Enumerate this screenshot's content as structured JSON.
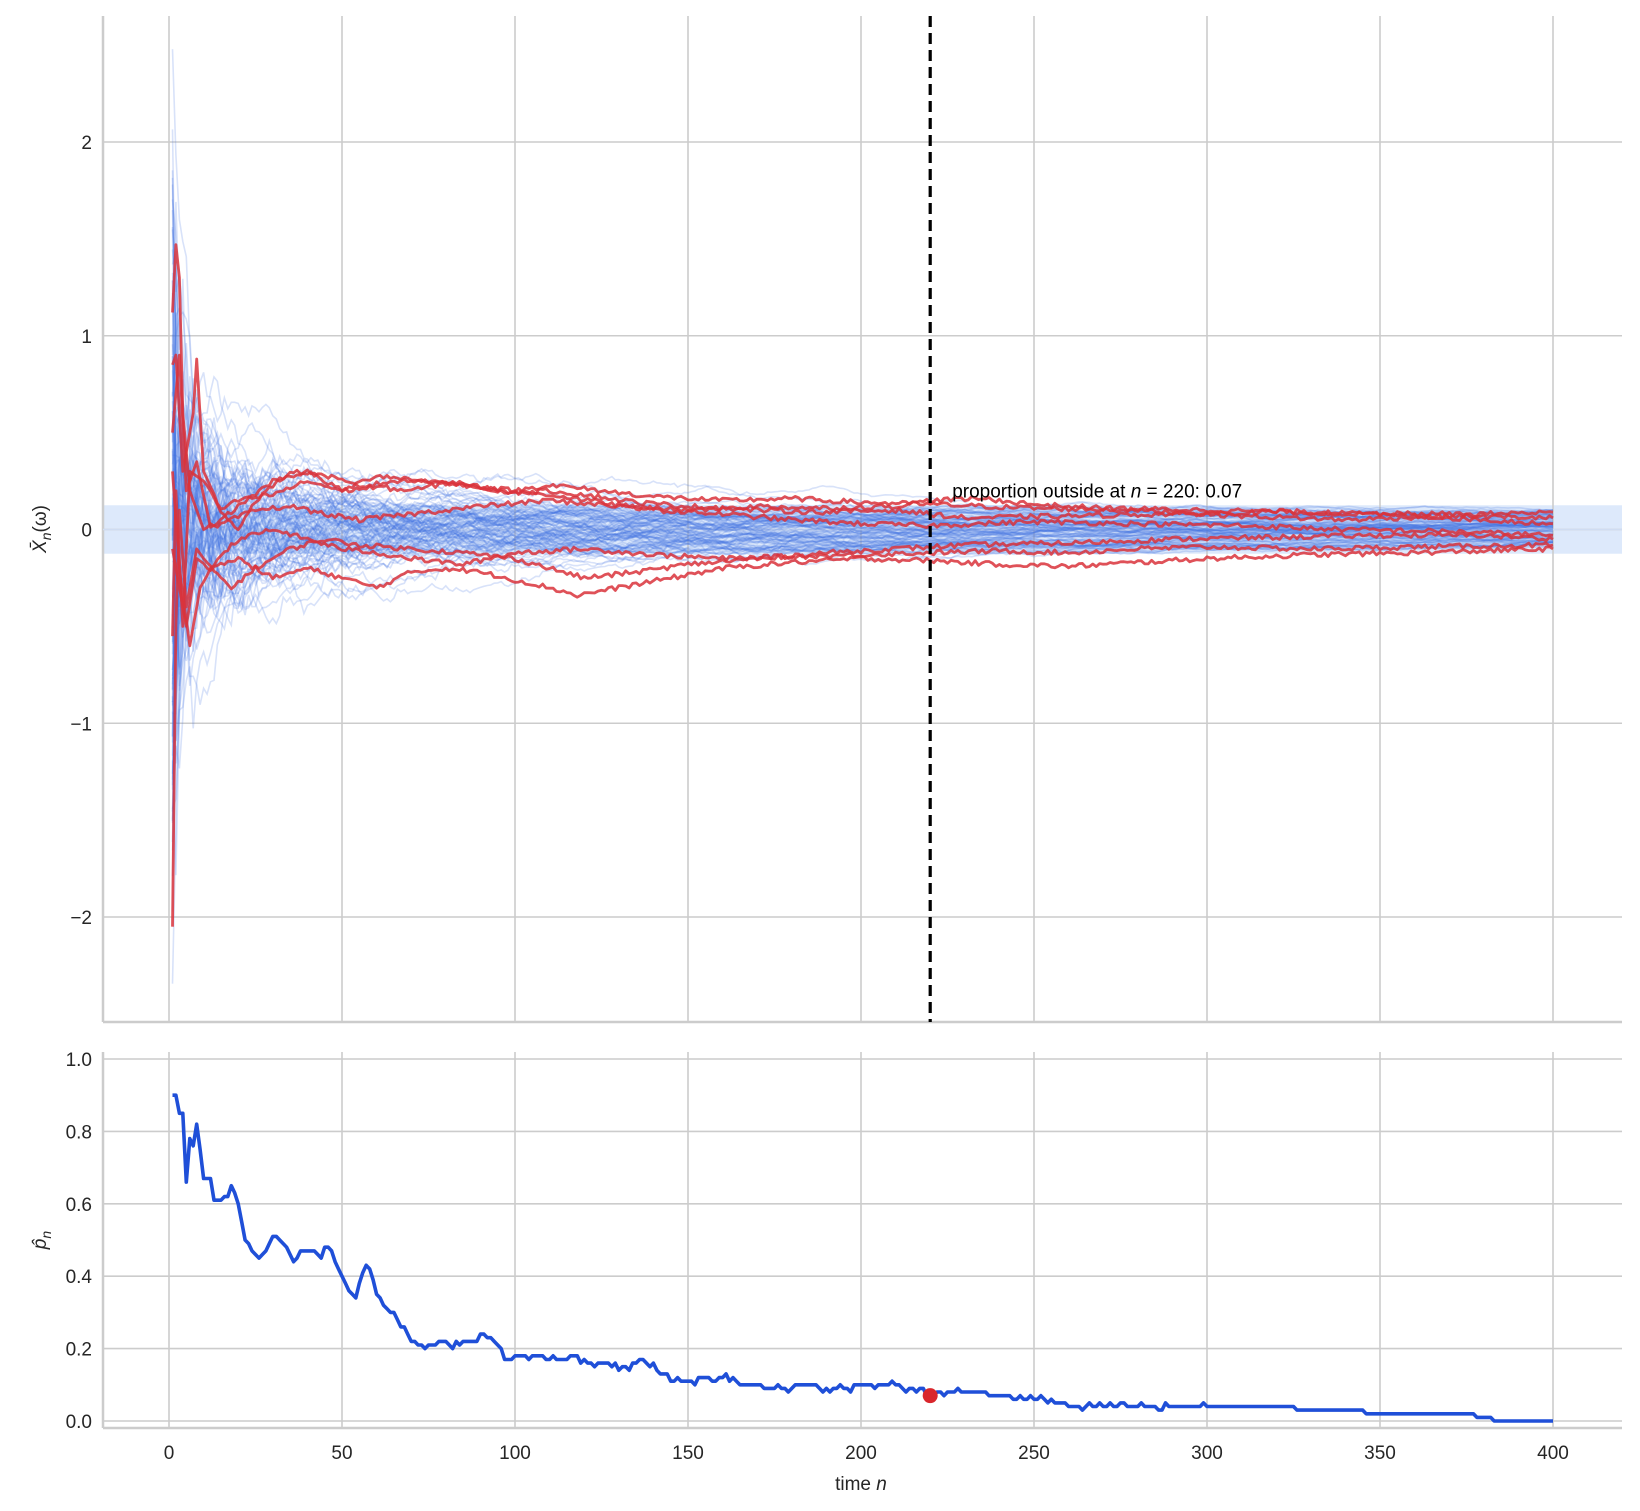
{
  "chart_data": [
    {
      "panel": "top",
      "type": "line",
      "title": "",
      "xlabel": "",
      "ylabel": "X̄_n(ω)",
      "ylabel_main": "X̄",
      "ylabel_sub": "n",
      "ylabel_tail": "(ω)",
      "xlim": [
        -18,
        420
      ],
      "ylim": [
        -2.55,
        2.5
      ],
      "xticks": [
        0,
        50,
        100,
        150,
        200,
        250,
        300,
        350,
        400
      ],
      "yticks": [
        -2,
        -1,
        0,
        1,
        2
      ],
      "ytick_labels": [
        "−2",
        "−1",
        "0",
        "1",
        "2"
      ],
      "grid": true,
      "n_max": 400,
      "epsilon_band": [
        -0.125,
        0.125
      ],
      "band_color": "#dde9fb",
      "n_paths_inside": 93,
      "n_paths_outside": 7,
      "inside_color": "#3b6fe0",
      "outside_color": "#d9333b",
      "vline_n": 220,
      "annotation": {
        "prefix": "proportion outside at ",
        "var": "n",
        "mid": " = 220: ",
        "value": "0.07"
      },
      "outside_paths": [
        {
          "points": [
            [
              1,
              1.12
            ],
            [
              2,
              1.47
            ],
            [
              3,
              1.3
            ],
            [
              4,
              0.6
            ],
            [
              6,
              0.2
            ],
            [
              10,
              0.0
            ],
            [
              15,
              0.05
            ],
            [
              20,
              0.12
            ],
            [
              30,
              0.25
            ],
            [
              40,
              0.3
            ],
            [
              50,
              0.2
            ],
            [
              60,
              0.28
            ],
            [
              75,
              0.25
            ],
            [
              90,
              0.22
            ],
            [
              100,
              0.2
            ],
            [
              110,
              0.23
            ],
            [
              125,
              0.2
            ],
            [
              140,
              0.17
            ],
            [
              160,
              0.15
            ],
            [
              180,
              0.16
            ],
            [
              200,
              0.14
            ],
            [
              220,
              0.13
            ],
            [
              250,
              0.11
            ],
            [
              280,
              0.1
            ],
            [
              310,
              0.07
            ],
            [
              340,
              0.05
            ],
            [
              370,
              0.07
            ],
            [
              400,
              0.06
            ]
          ]
        },
        {
          "points": [
            [
              1,
              0.85
            ],
            [
              2,
              0.9
            ],
            [
              4,
              0.3
            ],
            [
              7,
              0.6
            ],
            [
              8,
              0.88
            ],
            [
              10,
              0.3
            ],
            [
              15,
              0.1
            ],
            [
              20,
              0.15
            ],
            [
              30,
              0.18
            ],
            [
              40,
              0.25
            ],
            [
              50,
              0.2
            ],
            [
              60,
              0.22
            ],
            [
              70,
              0.2
            ],
            [
              80,
              0.24
            ],
            [
              90,
              0.22
            ],
            [
              100,
              0.19
            ],
            [
              110,
              0.2
            ],
            [
              120,
              0.18
            ],
            [
              135,
              0.14
            ],
            [
              150,
              0.12
            ],
            [
              170,
              0.1
            ],
            [
              190,
              0.09
            ],
            [
              210,
              0.1
            ],
            [
              230,
              0.06
            ],
            [
              260,
              0.07
            ],
            [
              290,
              0.08
            ],
            [
              320,
              0.09
            ],
            [
              350,
              0.08
            ],
            [
              380,
              0.08
            ],
            [
              400,
              0.09
            ]
          ]
        },
        {
          "points": [
            [
              1,
              -0.55
            ],
            [
              2,
              0.2
            ],
            [
              4,
              -0.5
            ],
            [
              6,
              0.3
            ],
            [
              10,
              0.25
            ],
            [
              15,
              0.1
            ],
            [
              20,
              0.0
            ],
            [
              25,
              0.15
            ],
            [
              35,
              0.3
            ],
            [
              45,
              0.28
            ],
            [
              55,
              0.22
            ],
            [
              65,
              0.25
            ],
            [
              80,
              0.25
            ],
            [
              95,
              0.2
            ],
            [
              110,
              0.18
            ],
            [
              125,
              0.14
            ],
            [
              140,
              0.1
            ],
            [
              160,
              0.08
            ],
            [
              180,
              0.05
            ],
            [
              200,
              0.03
            ],
            [
              220,
              0.02
            ],
            [
              250,
              0.04
            ],
            [
              280,
              0.03
            ],
            [
              310,
              0.02
            ],
            [
              340,
              0.0
            ],
            [
              370,
              -0.01
            ],
            [
              400,
              -0.03
            ]
          ]
        },
        {
          "points": [
            [
              1,
              -2.05
            ],
            [
              2,
              -0.5
            ],
            [
              3,
              0.1
            ],
            [
              5,
              -0.4
            ],
            [
              8,
              -0.1
            ],
            [
              12,
              -0.2
            ],
            [
              18,
              -0.3
            ],
            [
              25,
              -0.2
            ],
            [
              35,
              -0.1
            ],
            [
              45,
              -0.05
            ],
            [
              55,
              -0.08
            ],
            [
              70,
              -0.1
            ],
            [
              85,
              -0.12
            ],
            [
              100,
              -0.15
            ],
            [
              110,
              -0.2
            ],
            [
              120,
              -0.25
            ],
            [
              135,
              -0.22
            ],
            [
              150,
              -0.18
            ],
            [
              170,
              -0.15
            ],
            [
              190,
              -0.12
            ],
            [
              210,
              -0.1
            ],
            [
              230,
              -0.08
            ],
            [
              260,
              -0.07
            ],
            [
              290,
              -0.05
            ],
            [
              320,
              -0.04
            ],
            [
              350,
              -0.03
            ],
            [
              380,
              -0.03
            ],
            [
              400,
              -0.05
            ]
          ]
        },
        {
          "points": [
            [
              1,
              -0.1
            ],
            [
              3,
              -0.3
            ],
            [
              5,
              -0.5
            ],
            [
              8,
              -0.15
            ],
            [
              12,
              -0.2
            ],
            [
              20,
              -0.15
            ],
            [
              30,
              -0.25
            ],
            [
              40,
              -0.2
            ],
            [
              50,
              -0.25
            ],
            [
              60,
              -0.3
            ],
            [
              70,
              -0.22
            ],
            [
              80,
              -0.2
            ],
            [
              90,
              -0.22
            ],
            [
              100,
              -0.26
            ],
            [
              110,
              -0.3
            ],
            [
              118,
              -0.34
            ],
            [
              130,
              -0.3
            ],
            [
              145,
              -0.25
            ],
            [
              160,
              -0.2
            ],
            [
              180,
              -0.17
            ],
            [
              200,
              -0.15
            ],
            [
              220,
              -0.16
            ],
            [
              240,
              -0.18
            ],
            [
              260,
              -0.19
            ],
            [
              280,
              -0.17
            ],
            [
              300,
              -0.15
            ],
            [
              330,
              -0.13
            ],
            [
              360,
              -0.12
            ],
            [
              400,
              -0.1
            ]
          ]
        },
        {
          "points": [
            [
              1,
              0.3
            ],
            [
              3,
              -0.2
            ],
            [
              6,
              -0.6
            ],
            [
              9,
              -0.3
            ],
            [
              14,
              -0.15
            ],
            [
              20,
              -0.05
            ],
            [
              30,
              0.0
            ],
            [
              40,
              -0.05
            ],
            [
              50,
              -0.1
            ],
            [
              60,
              -0.12
            ],
            [
              70,
              -0.15
            ],
            [
              85,
              -0.18
            ],
            [
              100,
              -0.12
            ],
            [
              120,
              -0.1
            ],
            [
              140,
              -0.13
            ],
            [
              160,
              -0.15
            ],
            [
              180,
              -0.14
            ],
            [
              200,
              -0.13
            ],
            [
              220,
              -0.12
            ],
            [
              240,
              -0.11
            ],
            [
              260,
              -0.12
            ],
            [
              280,
              -0.1
            ],
            [
              300,
              -0.09
            ],
            [
              330,
              -0.1
            ],
            [
              360,
              -0.09
            ],
            [
              400,
              -0.08
            ]
          ]
        },
        {
          "points": [
            [
              1,
              0.5
            ],
            [
              3,
              0.9
            ],
            [
              5,
              0.2
            ],
            [
              8,
              0.35
            ],
            [
              12,
              0.0
            ],
            [
              18,
              0.05
            ],
            [
              25,
              0.1
            ],
            [
              35,
              0.12
            ],
            [
              45,
              0.08
            ],
            [
              55,
              0.05
            ],
            [
              70,
              0.08
            ],
            [
              90,
              0.12
            ],
            [
              110,
              0.15
            ],
            [
              130,
              0.12
            ],
            [
              150,
              0.1
            ],
            [
              170,
              0.12
            ],
            [
              190,
              0.11
            ],
            [
              210,
              0.12
            ],
            [
              220,
              0.15
            ],
            [
              235,
              0.16
            ],
            [
              250,
              0.13
            ],
            [
              270,
              0.11
            ],
            [
              300,
              0.1
            ],
            [
              330,
              0.09
            ],
            [
              360,
              0.07
            ],
            [
              400,
              0.03
            ]
          ]
        }
      ]
    },
    {
      "panel": "bottom",
      "type": "line",
      "title": "",
      "xlabel_prefix": "time ",
      "xlabel_var": "n",
      "ylabel": "p̂_n",
      "ylabel_main": "p̂",
      "ylabel_sub": "n",
      "xlim": [
        -18,
        420
      ],
      "ylim": [
        -0.01,
        1.02
      ],
      "xticks": [
        0,
        50,
        100,
        150,
        200,
        250,
        300,
        350,
        400
      ],
      "yticks": [
        0.0,
        0.2,
        0.4,
        0.6,
        0.8,
        1.0
      ],
      "ytick_labels": [
        "0.0",
        "0.2",
        "0.4",
        "0.6",
        "0.8",
        "1.0"
      ],
      "grid": true,
      "line_color": "#1f4fd8",
      "marker": {
        "n": 220,
        "value": 0.07,
        "color": "#d9262c"
      },
      "x": [
        1,
        2,
        3,
        4,
        5,
        6,
        7,
        8,
        9,
        10,
        11,
        12,
        13,
        15,
        17,
        18,
        20,
        22,
        24,
        26,
        28,
        30,
        32,
        34,
        36,
        38,
        40,
        42,
        44,
        46,
        48,
        50,
        52,
        54,
        56,
        58,
        60,
        63,
        66,
        70,
        74,
        78,
        82,
        86,
        90,
        94,
        98,
        102,
        106,
        110,
        114,
        118,
        122,
        126,
        130,
        134,
        138,
        142,
        146,
        150,
        155,
        160,
        166,
        172,
        178,
        184,
        190,
        196,
        202,
        208,
        214,
        220,
        226,
        232,
        238,
        244,
        250,
        256,
        262,
        268,
        274,
        280,
        290,
        300,
        310,
        320,
        330,
        340,
        350,
        360,
        370,
        375,
        380,
        385,
        390,
        400
      ],
      "values": [
        0.9,
        0.9,
        0.85,
        0.85,
        0.66,
        0.78,
        0.76,
        0.82,
        0.75,
        0.67,
        0.67,
        0.67,
        0.61,
        0.61,
        0.62,
        0.65,
        0.6,
        0.5,
        0.47,
        0.45,
        0.47,
        0.51,
        0.5,
        0.48,
        0.44,
        0.47,
        0.47,
        0.47,
        0.45,
        0.48,
        0.44,
        0.4,
        0.36,
        0.34,
        0.41,
        0.42,
        0.35,
        0.31,
        0.28,
        0.22,
        0.2,
        0.22,
        0.2,
        0.22,
        0.24,
        0.22,
        0.17,
        0.18,
        0.18,
        0.17,
        0.17,
        0.18,
        0.16,
        0.16,
        0.14,
        0.16,
        0.16,
        0.13,
        0.11,
        0.11,
        0.12,
        0.12,
        0.1,
        0.09,
        0.09,
        0.1,
        0.09,
        0.09,
        0.1,
        0.1,
        0.09,
        0.07,
        0.08,
        0.08,
        0.07,
        0.06,
        0.06,
        0.05,
        0.04,
        0.04,
        0.04,
        0.04,
        0.04,
        0.04,
        0.04,
        0.04,
        0.03,
        0.03,
        0.02,
        0.02,
        0.02,
        0.02,
        0.01,
        0.0,
        0.0,
        0.0
      ]
    }
  ]
}
